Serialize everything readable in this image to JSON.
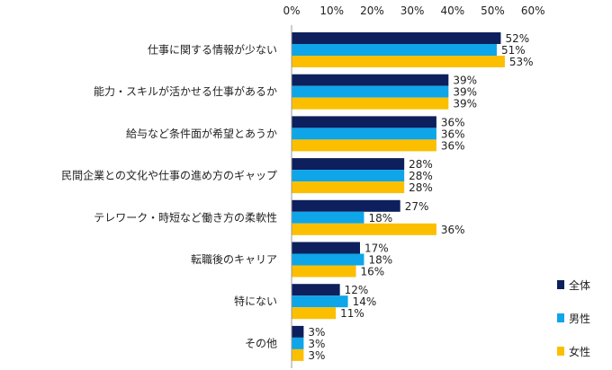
{
  "chart_data": {
    "type": "bar",
    "orientation": "horizontal",
    "title": "",
    "xlabel": "",
    "ylabel": "",
    "xlim": [
      0,
      60
    ],
    "x_ticks": [
      "0%",
      "10%",
      "20%",
      "30%",
      "40%",
      "50%",
      "60%"
    ],
    "categories": [
      "仕事に関する情報が少ない",
      "能力・スキルが活かせる仕事があるか",
      "給与など条件面が希望とあうか",
      "民間企業との文化や仕事の進め方のギャップ",
      "テレワーク・時短など働き方の柔軟性",
      "転職後のキャリア",
      "特にない",
      "その他"
    ],
    "series": [
      {
        "name": "全体",
        "color": "#0d1f5c",
        "values": [
          52,
          39,
          36,
          28,
          27,
          17,
          12,
          3
        ]
      },
      {
        "name": "男性",
        "color": "#0ea5e9",
        "values": [
          51,
          39,
          36,
          28,
          18,
          18,
          14,
          3
        ]
      },
      {
        "name": "女性",
        "color": "#fbbf00",
        "values": [
          53,
          39,
          36,
          28,
          36,
          16,
          11,
          3
        ]
      }
    ],
    "value_suffix": "%",
    "legend_position": "bottom-right",
    "grid": false
  }
}
